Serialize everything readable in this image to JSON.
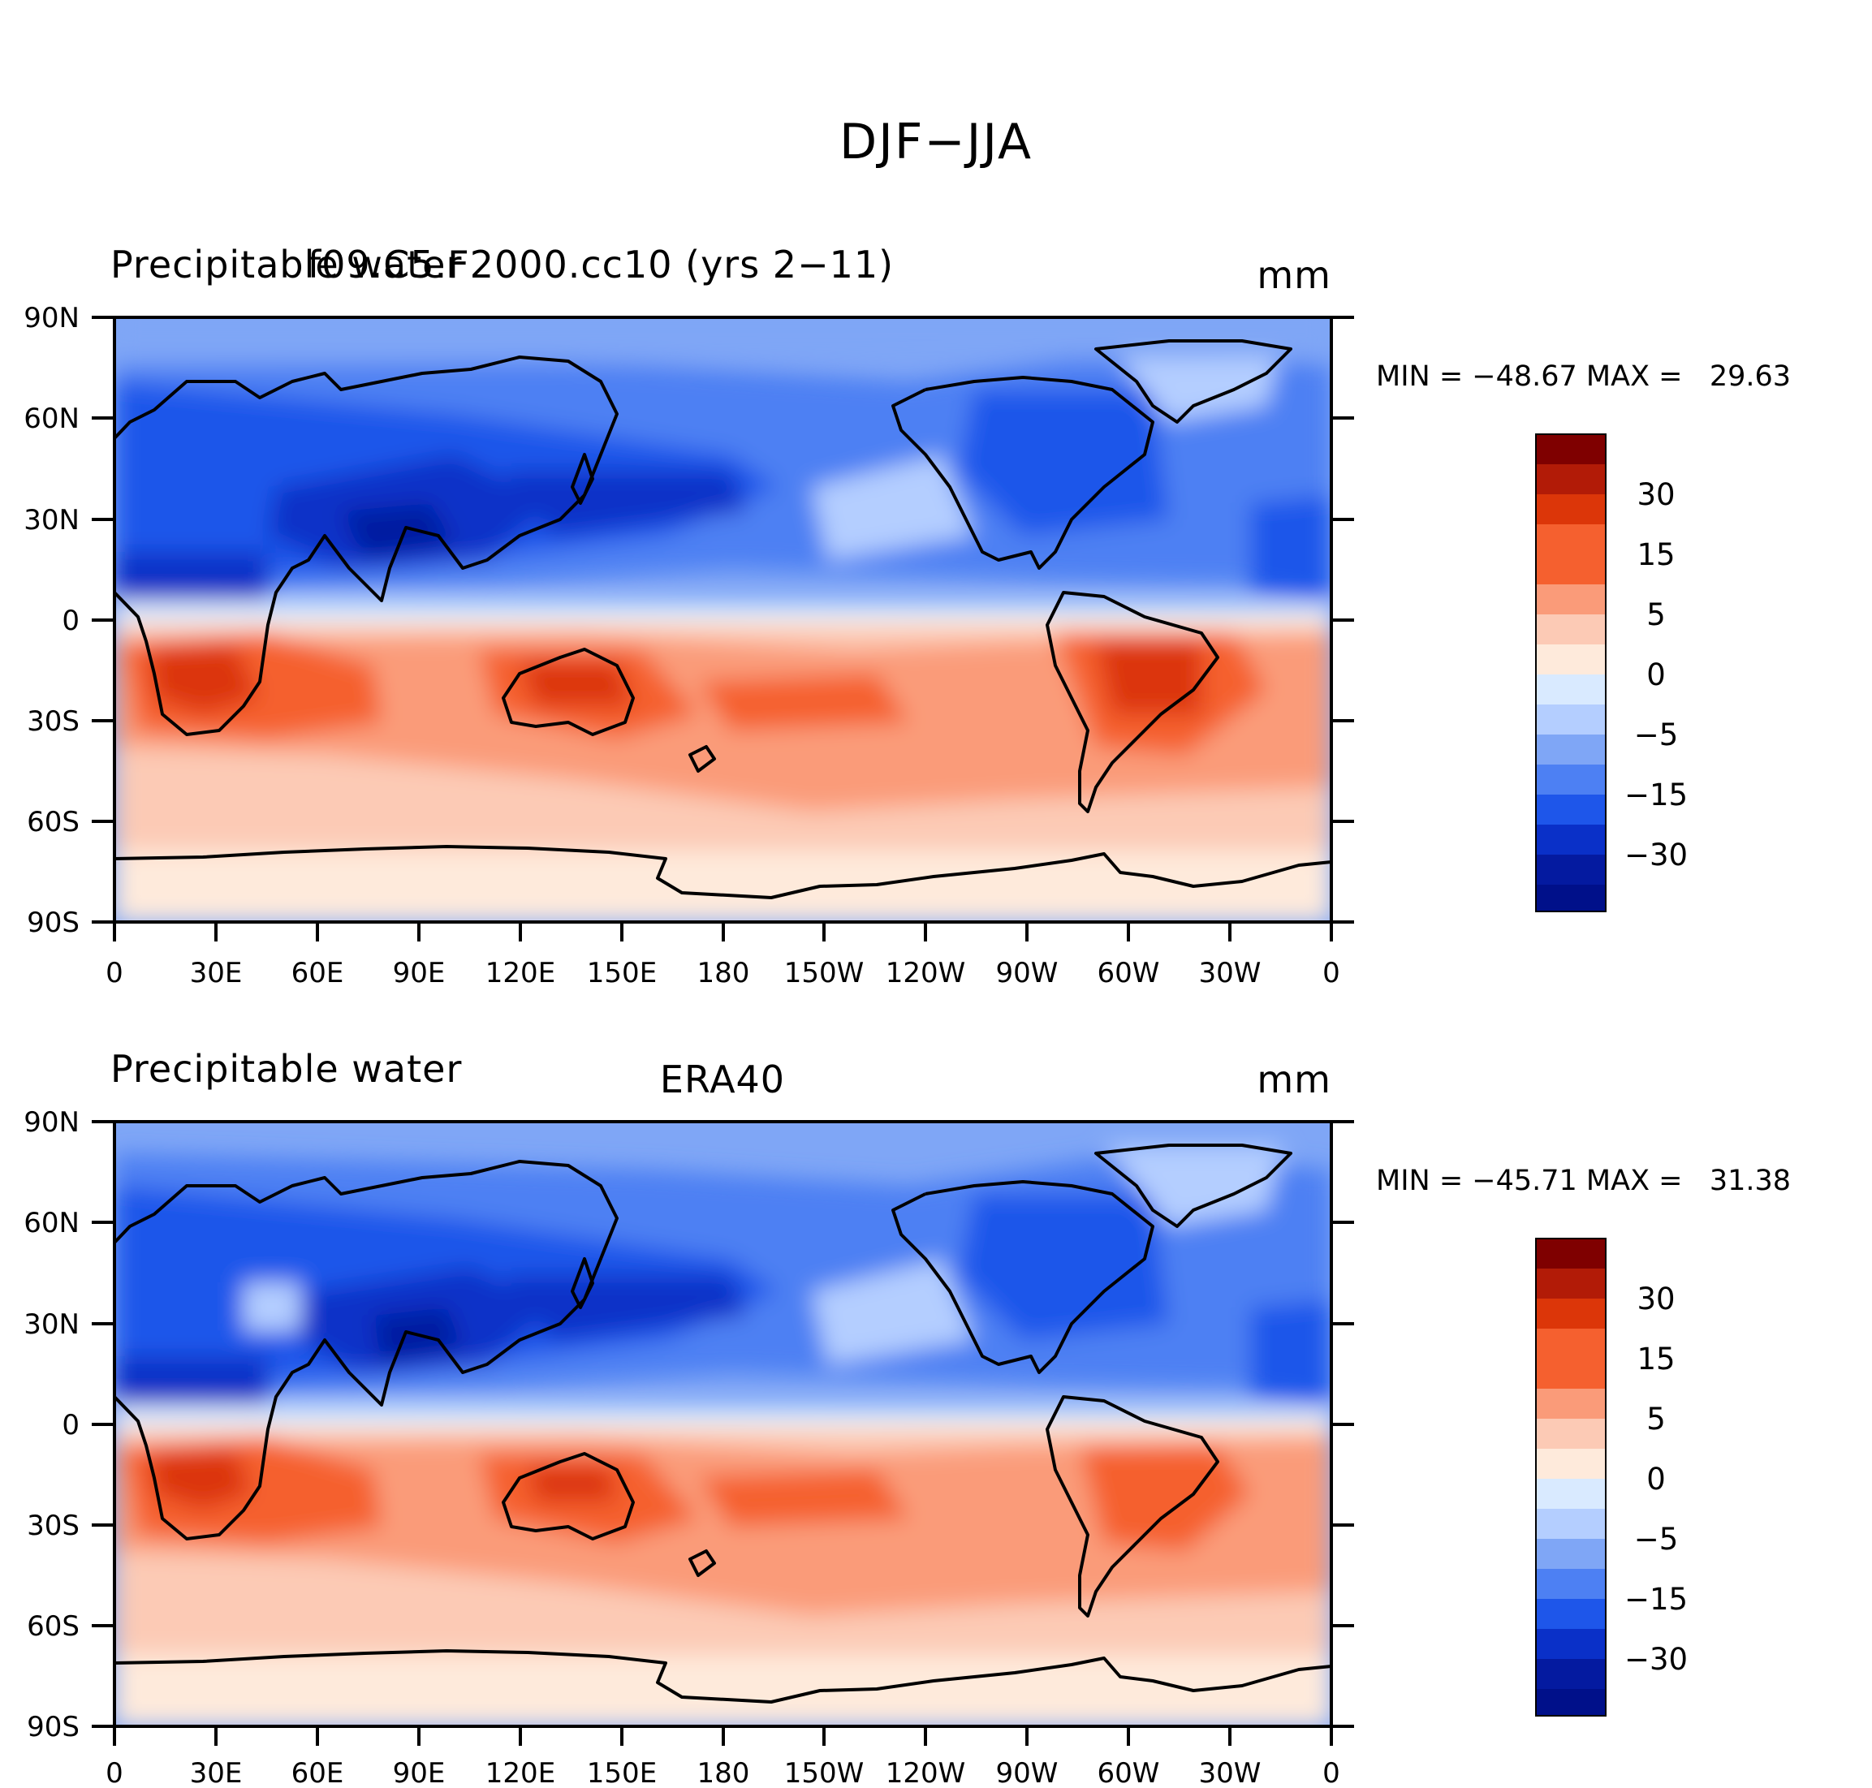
{
  "figure": {
    "title": "DJF−JJA",
    "colors": {
      "ocean_base": "#7fa6f6",
      "coast": "#000000"
    }
  },
  "panels": [
    {
      "left_title": "Precipitable water",
      "center_title": "f09.C5.F2000.cc10 (yrs 2−11)",
      "units": "mm",
      "stats": {
        "min": -48.67,
        "max": 29.63,
        "text": "MIN = −48.67 MAX =   29.63"
      }
    },
    {
      "left_title": "Precipitable water",
      "center_title": "ERA40",
      "units": "mm",
      "stats": {
        "min": -45.71,
        "max": 31.38,
        "text": "MIN = −45.71 MAX =   31.38"
      }
    }
  ],
  "axes": {
    "lat_labels": [
      "90N",
      "60N",
      "30N",
      "0",
      "30S",
      "60S",
      "90S"
    ],
    "lon_labels": [
      "0",
      "30E",
      "60E",
      "90E",
      "120E",
      "150E",
      "180",
      "150W",
      "120W",
      "90W",
      "60W",
      "30W",
      "0"
    ]
  },
  "colorbar": {
    "colors": [
      "#7f0000",
      "#b21b07",
      "#dc3609",
      "#f5602f",
      "#fa9b79",
      "#fccab5",
      "#feeadb",
      "#d9eaff",
      "#b4ceff",
      "#7fa6f6",
      "#4d80f3",
      "#1e56ea",
      "#0a30c8",
      "#041aa0",
      "#00108a"
    ],
    "labels": [
      "30",
      "15",
      "5",
      "0",
      "−5",
      "−15",
      "−30"
    ]
  }
}
